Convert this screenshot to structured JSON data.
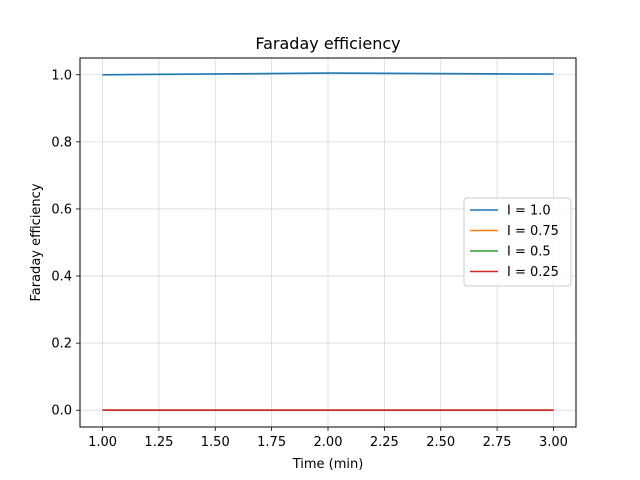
{
  "chart_data": {
    "type": "line",
    "title": "Faraday efficiency",
    "xlabel": "Time (min)",
    "ylabel": "Faraday efficiency",
    "xlim": [
      0.9,
      3.1
    ],
    "ylim": [
      -0.05,
      1.05
    ],
    "xticks": [
      1.0,
      1.25,
      1.5,
      1.75,
      2.0,
      2.25,
      2.5,
      2.75,
      3.0
    ],
    "xtick_labels": [
      "1.00",
      "1.25",
      "1.50",
      "1.75",
      "2.00",
      "2.25",
      "2.50",
      "2.75",
      "3.00"
    ],
    "yticks": [
      0.0,
      0.2,
      0.4,
      0.6,
      0.8,
      1.0
    ],
    "ytick_labels": [
      "0.0",
      "0.2",
      "0.4",
      "0.6",
      "0.8",
      "1.0"
    ],
    "grid": true,
    "legend_position": "center-right",
    "x": [
      1.0,
      2.0,
      3.0
    ],
    "series": [
      {
        "name": "I = 1.0",
        "color": "#1f77b4",
        "values": [
          1.0,
          1.005,
          1.002
        ]
      },
      {
        "name": "I = 0.75",
        "color": "#ff7f0e",
        "values": [
          0.0,
          0.0,
          0.0
        ]
      },
      {
        "name": "I = 0.5",
        "color": "#2ca02c",
        "values": [
          0.0,
          0.0,
          0.0
        ]
      },
      {
        "name": "I = 0.25",
        "color": "#d62728",
        "values": [
          0.0,
          0.0,
          0.0
        ]
      }
    ]
  }
}
